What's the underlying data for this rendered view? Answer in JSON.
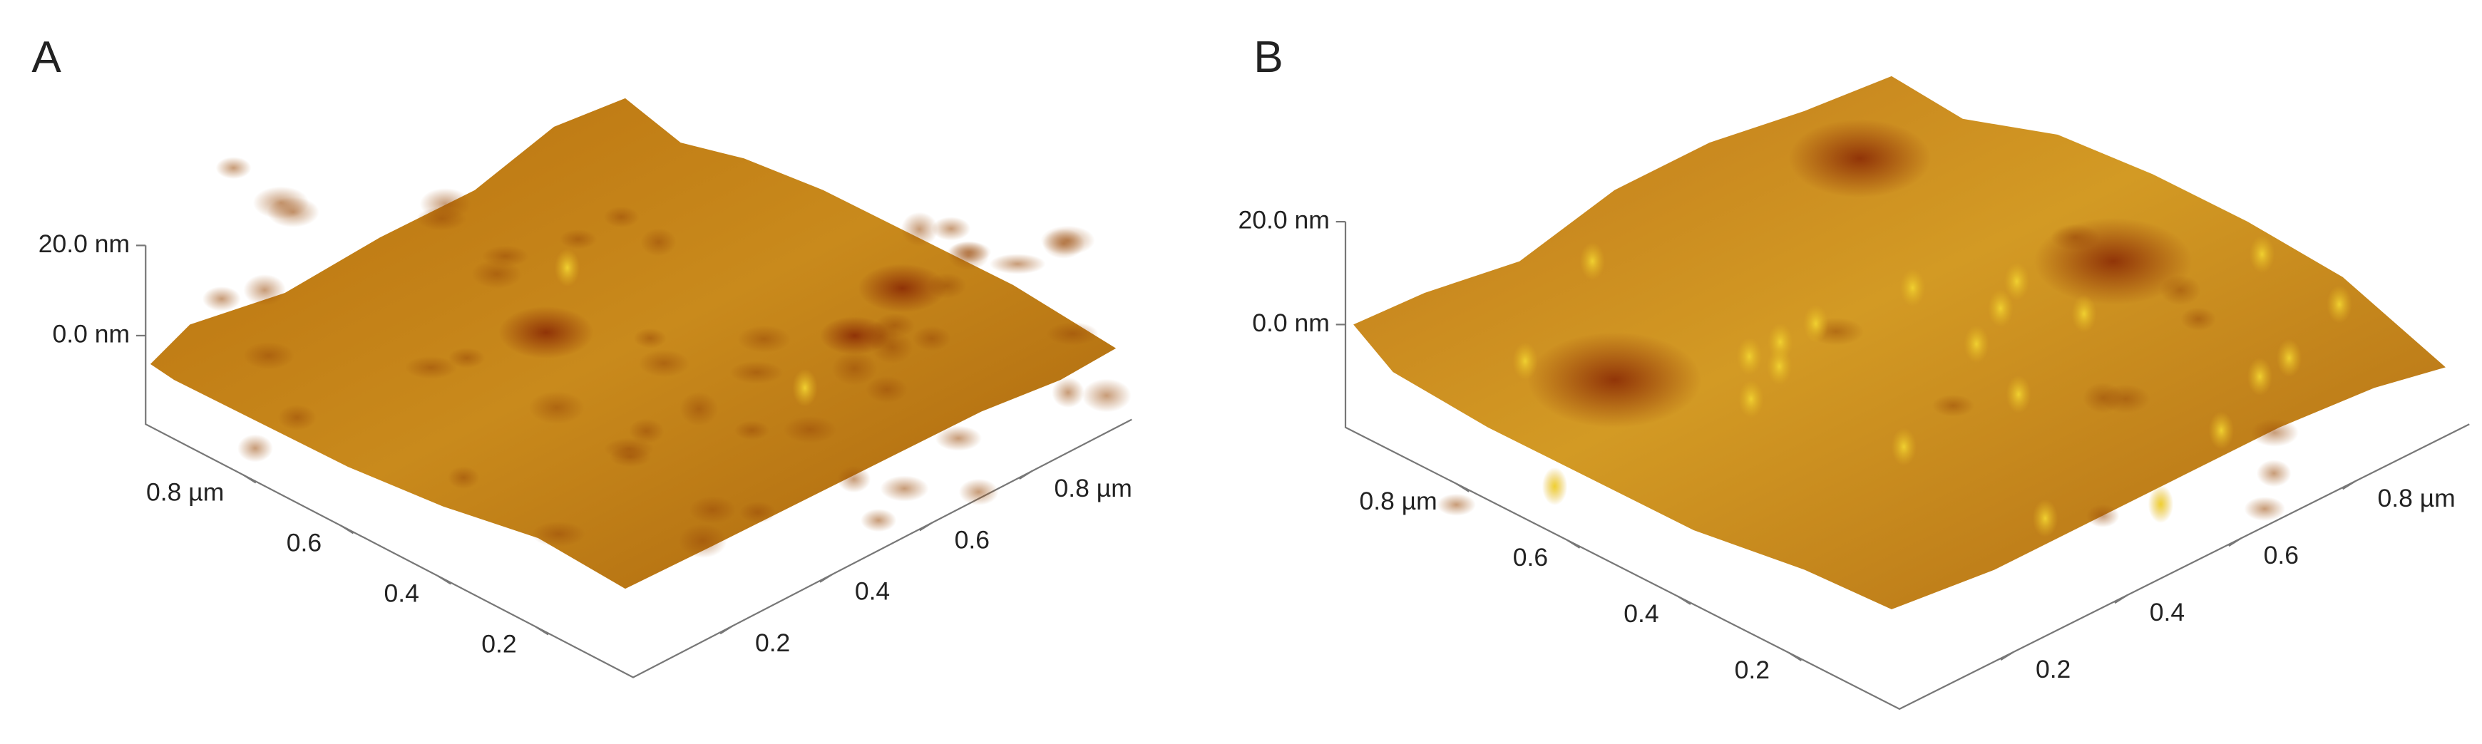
{
  "panels": [
    {
      "label": "A",
      "z_ticks": [
        "20.0 nm",
        "0.0 nm"
      ],
      "x_ticks": [
        "0.8 µm",
        "0.6",
        "0.4",
        "0.2"
      ],
      "y_ticks": [
        "0.2",
        "0.4",
        "0.6",
        "0.8 µm"
      ]
    },
    {
      "label": "B",
      "z_ticks": [
        "20.0 nm",
        "0.0 nm"
      ],
      "x_ticks": [
        "0.8 µm",
        "0.6",
        "0.4",
        "0.2"
      ],
      "y_ticks": [
        "0.2",
        "0.4",
        "0.6",
        "0.8 µm"
      ]
    }
  ]
}
